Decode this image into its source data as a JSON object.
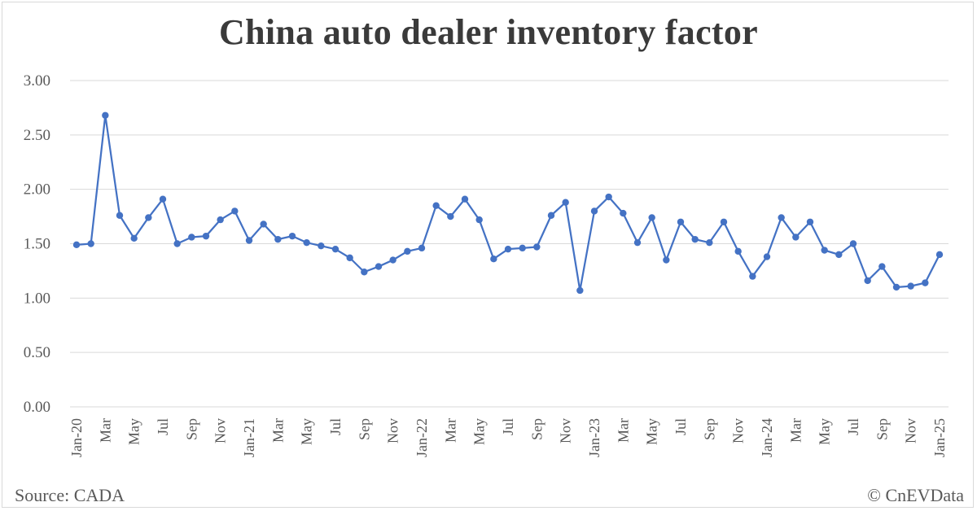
{
  "chart_data": {
    "type": "line",
    "title": "China auto dealer inventory factor",
    "xlabel": "",
    "ylabel": "",
    "ylim": [
      0,
      3
    ],
    "yticks": [
      "0.00",
      "0.50",
      "1.00",
      "1.50",
      "2.00",
      "2.50",
      "3.00"
    ],
    "grid": true,
    "legend": "none",
    "series_color": "#4472C4",
    "x": [
      "Jan-20",
      "Feb-20",
      "Mar-20",
      "Apr-20",
      "May-20",
      "Jun-20",
      "Jul-20",
      "Aug-20",
      "Sep-20",
      "Oct-20",
      "Nov-20",
      "Dec-20",
      "Jan-21",
      "Feb-21",
      "Mar-21",
      "Apr-21",
      "May-21",
      "Jun-21",
      "Jul-21",
      "Aug-21",
      "Sep-21",
      "Oct-21",
      "Nov-21",
      "Dec-21",
      "Jan-22",
      "Feb-22",
      "Mar-22",
      "Apr-22",
      "May-22",
      "Jun-22",
      "Jul-22",
      "Aug-22",
      "Sep-22",
      "Oct-22",
      "Nov-22",
      "Dec-22",
      "Jan-23",
      "Feb-23",
      "Mar-23",
      "Apr-23",
      "May-23",
      "Jun-23",
      "Jul-23",
      "Aug-23",
      "Sep-23",
      "Oct-23",
      "Nov-23",
      "Dec-23",
      "Jan-24",
      "Feb-24",
      "Mar-24",
      "Apr-24",
      "May-24",
      "Jun-24",
      "Jul-24",
      "Aug-24",
      "Sep-24",
      "Oct-24",
      "Nov-24",
      "Dec-24",
      "Jan-25"
    ],
    "tick_labels": [
      "Jan-20",
      "Mar",
      "May",
      "Jul",
      "Sep",
      "Nov",
      "Jan-21",
      "Mar",
      "May",
      "Jul",
      "Sep",
      "Nov",
      "Jan-22",
      "Mar",
      "May",
      "Jul",
      "Sep",
      "Nov",
      "Jan-23",
      "Mar",
      "May",
      "Jul",
      "Sep",
      "Nov",
      "Jan-24",
      "Mar",
      "May",
      "Jul",
      "Sep",
      "Nov",
      "Jan-25"
    ],
    "series": [
      {
        "values": [
          1.49,
          1.5,
          2.68,
          1.76,
          1.55,
          1.74,
          1.91,
          1.5,
          1.56,
          1.57,
          1.72,
          1.8,
          1.53,
          1.68,
          1.54,
          1.57,
          1.51,
          1.48,
          1.45,
          1.37,
          1.24,
          1.29,
          1.35,
          1.43,
          1.46,
          1.85,
          1.75,
          1.91,
          1.72,
          1.36,
          1.45,
          1.46,
          1.47,
          1.76,
          1.88,
          1.07,
          1.8,
          1.93,
          1.78,
          1.51,
          1.74,
          1.35,
          1.7,
          1.54,
          1.51,
          1.7,
          1.43,
          1.2,
          1.38,
          1.74,
          1.56,
          1.7,
          1.44,
          1.4,
          1.5,
          1.16,
          1.29,
          1.1,
          1.11,
          1.14,
          1.4
        ]
      }
    ]
  },
  "footer": {
    "source": "Source: CADA",
    "copyright": "© CnEVData"
  }
}
